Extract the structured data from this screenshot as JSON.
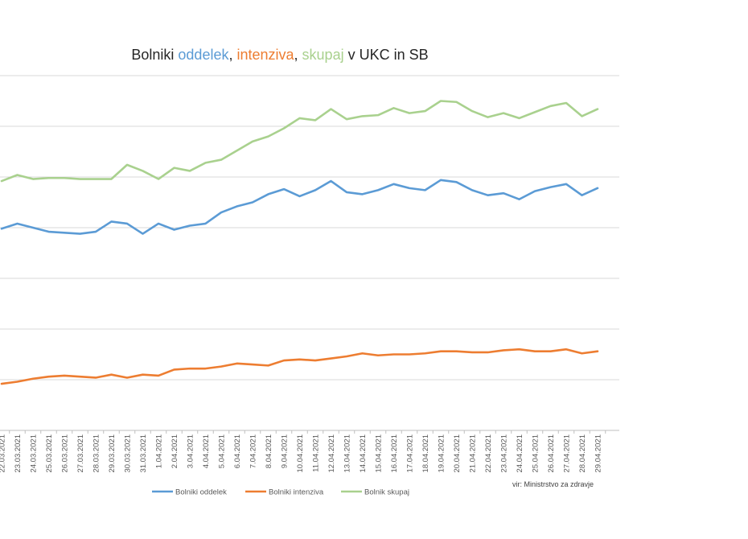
{
  "chart_data": {
    "type": "line",
    "title_parts": [
      {
        "text": "Bolniki ",
        "color": "#262626"
      },
      {
        "text": "oddelek",
        "color": "#5b9bd5"
      },
      {
        "text": ", ",
        "color": "#262626"
      },
      {
        "text": "intenziva",
        "color": "#ed7d31"
      },
      {
        "text": ", ",
        "color": "#262626"
      },
      {
        "text": "skupaj",
        "color": "#a9d18e"
      },
      {
        "text": " v UKC in SB",
        "color": "#262626"
      }
    ],
    "xlabel": "",
    "ylabel": "",
    "ylim": [
      0,
      350
    ],
    "grid_step": 50,
    "grid": true,
    "legend_position": "bottom",
    "categories": [
      "22.03.2021",
      "23.03.2021",
      "24.03.2021",
      "25.03.2021",
      "26.03.2021",
      "27.03.2021",
      "28.03.2021",
      "29.03.2021",
      "30.03.2021",
      "31.03.2021",
      "1.04.2021",
      "2.04.2021",
      "3.04.2021",
      "4.04.2021",
      "5.04.2021",
      "6.04.2021",
      "7.04.2021",
      "8.04.2021",
      "9.04.2021",
      "10.04.2021",
      "11.04.2021",
      "12.04.2021",
      "13.04.2021",
      "14.04.2021",
      "15.04.2021",
      "16.04.2021",
      "17.04.2021",
      "18.04.2021",
      "19.04.2021",
      "20.04.2021",
      "21.04.2021",
      "22.04.2021",
      "23.04.2021",
      "24.04.2021",
      "25.04.2021",
      "26.04.2021",
      "27.04.2021",
      "28.04.2021",
      "29.04.2021"
    ],
    "series": [
      {
        "name": "Bolniki oddelek",
        "color": "#5b9bd5",
        "values": [
          199,
          204,
          200,
          196,
          195,
          194,
          196,
          206,
          204,
          194,
          204,
          198,
          202,
          204,
          215,
          221,
          225,
          233,
          238,
          231,
          237,
          246,
          235,
          233,
          237,
          243,
          239,
          237,
          247,
          245,
          237,
          232,
          234,
          228,
          236,
          240,
          243,
          232,
          239
        ]
      },
      {
        "name": "Bolniki intenziva",
        "color": "#ed7d31",
        "values": [
          46,
          48,
          51,
          53,
          54,
          53,
          52,
          55,
          52,
          55,
          54,
          60,
          61,
          61,
          63,
          66,
          65,
          64,
          69,
          70,
          69,
          71,
          73,
          76,
          74,
          75,
          75,
          76,
          78,
          78,
          77,
          77,
          79,
          80,
          78,
          78,
          80,
          76,
          78
        ]
      },
      {
        "name": "Bolnik skupaj",
        "color": "#a9d18e",
        "values": [
          246,
          252,
          248,
          249,
          249,
          248,
          248,
          248,
          262,
          256,
          248,
          259,
          256,
          264,
          267,
          276,
          285,
          290,
          298,
          308,
          306,
          317,
          307,
          310,
          311,
          318,
          313,
          315,
          325,
          324,
          315,
          309,
          313,
          308,
          314,
          320,
          323,
          310,
          317
        ]
      }
    ],
    "source_note": "vir: Ministrstvo za zdravje"
  }
}
